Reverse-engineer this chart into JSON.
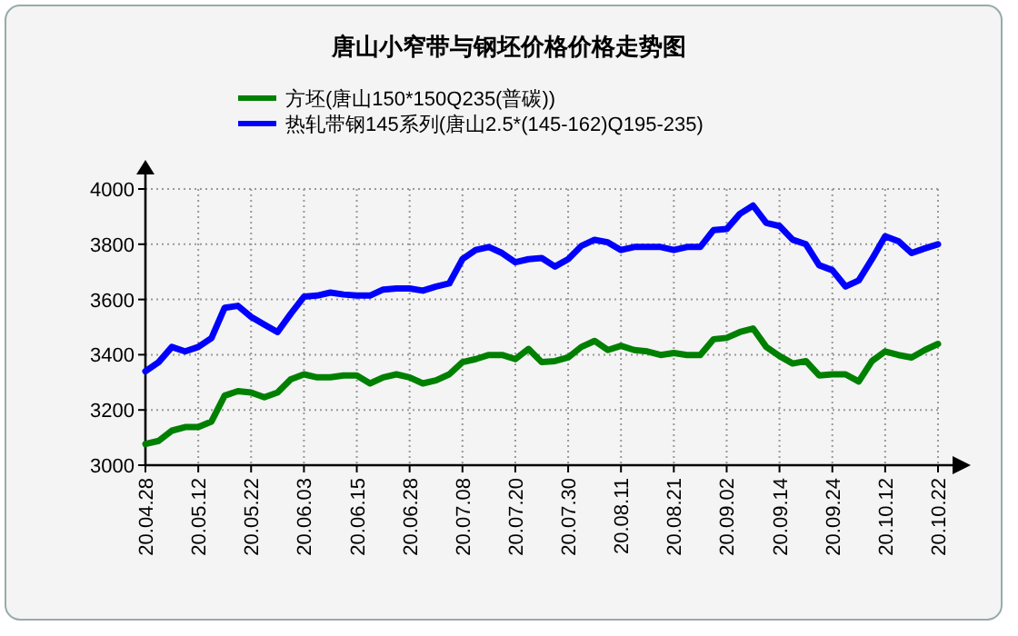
{
  "chart_data": {
    "type": "line",
    "title": "唐山小窄带与钢坯价格价格走势图",
    "categories": [
      "20.04.28",
      null,
      null,
      null,
      "20.05.12",
      null,
      null,
      null,
      "20.05.22",
      null,
      null,
      null,
      "20.06.03",
      null,
      null,
      null,
      "20.06.15",
      null,
      null,
      null,
      "20.06.28",
      null,
      null,
      null,
      "20.07.08",
      null,
      null,
      null,
      "20.07.20",
      null,
      null,
      null,
      "20.07.30",
      null,
      null,
      null,
      "20.08.11",
      null,
      null,
      null,
      "20.08.21",
      null,
      null,
      null,
      "20.09.02",
      null,
      null,
      null,
      "20.09.14",
      null,
      null,
      null,
      "20.09.24",
      null,
      null,
      null,
      "20.10.12",
      null,
      null,
      null,
      "20.10.22"
    ],
    "series": [
      {
        "name": "方坯(唐山150*150Q235(普碳))",
        "color": "#008000",
        "values": [
          3077,
          3088,
          3125,
          3138,
          3138,
          3158,
          3252,
          3268,
          3263,
          3246,
          3263,
          3311,
          3329,
          3318,
          3318,
          3325,
          3325,
          3296,
          3318,
          3329,
          3318,
          3296,
          3307,
          3329,
          3373,
          3384,
          3399,
          3399,
          3384,
          3421,
          3373,
          3377,
          3390,
          3428,
          3450,
          3417,
          3432,
          3417,
          3412,
          3399,
          3406,
          3399,
          3399,
          3456,
          3461,
          3482,
          3495,
          3428,
          3395,
          3368,
          3377,
          3325,
          3329,
          3329,
          3303,
          3377,
          3412,
          3399,
          3390,
          3417,
          3439
        ]
      },
      {
        "name": "热轧带钢145系列(唐山2.5*(145-162)Q195-235)",
        "color": "#0000ff",
        "values": [
          3340,
          3373,
          3428,
          3412,
          3428,
          3460,
          3570,
          3577,
          3537,
          3509,
          3482,
          3548,
          3610,
          3614,
          3625,
          3618,
          3614,
          3614,
          3636,
          3640,
          3640,
          3632,
          3647,
          3658,
          3746,
          3779,
          3790,
          3768,
          3735,
          3746,
          3750,
          3719,
          3746,
          3794,
          3816,
          3807,
          3779,
          3790,
          3790,
          3790,
          3779,
          3790,
          3790,
          3851,
          3855,
          3910,
          3940,
          3877,
          3866,
          3816,
          3800,
          3724,
          3706,
          3647,
          3669,
          3746,
          3829,
          3811,
          3768,
          3785,
          3800
        ]
      }
    ],
    "ylim": [
      3000,
      4000
    ],
    "yticks": [
      3000,
      3200,
      3400,
      3600,
      3800,
      4000
    ],
    "grid": true,
    "legend": "top",
    "line_style": "solid",
    "marker": "none"
  }
}
